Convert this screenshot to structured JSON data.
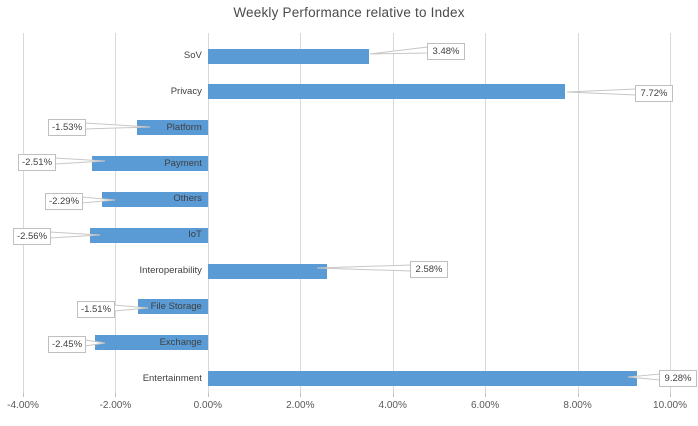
{
  "chart_data": {
    "type": "bar",
    "orientation": "horizontal",
    "title": "Weekly Performance relative to Index",
    "categories": [
      "SoV",
      "Privacy",
      "Platform",
      "Payment",
      "Others",
      "IoT",
      "Interoperability",
      "File Storage",
      "Exchange",
      "Entertainment"
    ],
    "values": [
      3.48,
      7.72,
      -1.53,
      -2.51,
      -2.29,
      -2.56,
      2.58,
      -1.51,
      -2.45,
      9.28
    ],
    "value_labels": [
      "3.48%",
      "7.72%",
      "-1.53%",
      "-2.51%",
      "-2.29%",
      "-2.56%",
      "2.58%",
      "-1.51%",
      "-2.45%",
      "9.28%"
    ],
    "xlabel": "",
    "ylabel": "",
    "xlim": [
      -4,
      10
    ],
    "x_tick_values": [
      -4,
      -2,
      0,
      2,
      4,
      6,
      8,
      10
    ],
    "x_tick_labels": [
      "-4.00%",
      "-2.00%",
      "0.00%",
      "2.00%",
      "4.00%",
      "6.00%",
      "8.00%",
      "10.00%"
    ],
    "grid": true,
    "legend": "none",
    "value_labels_style": "callout-boxes-with-leader-lines",
    "colors": {
      "bar": "#5B9BD5",
      "gridline": "#D9D9D9",
      "title_text": "#4A4A4A",
      "category_text": "#3F3F3F",
      "axis_text": "#595959",
      "callout_border": "#BFBFBF",
      "callout_bg": "#FFFFFF",
      "leader_line": "#C9C7C5"
    }
  }
}
